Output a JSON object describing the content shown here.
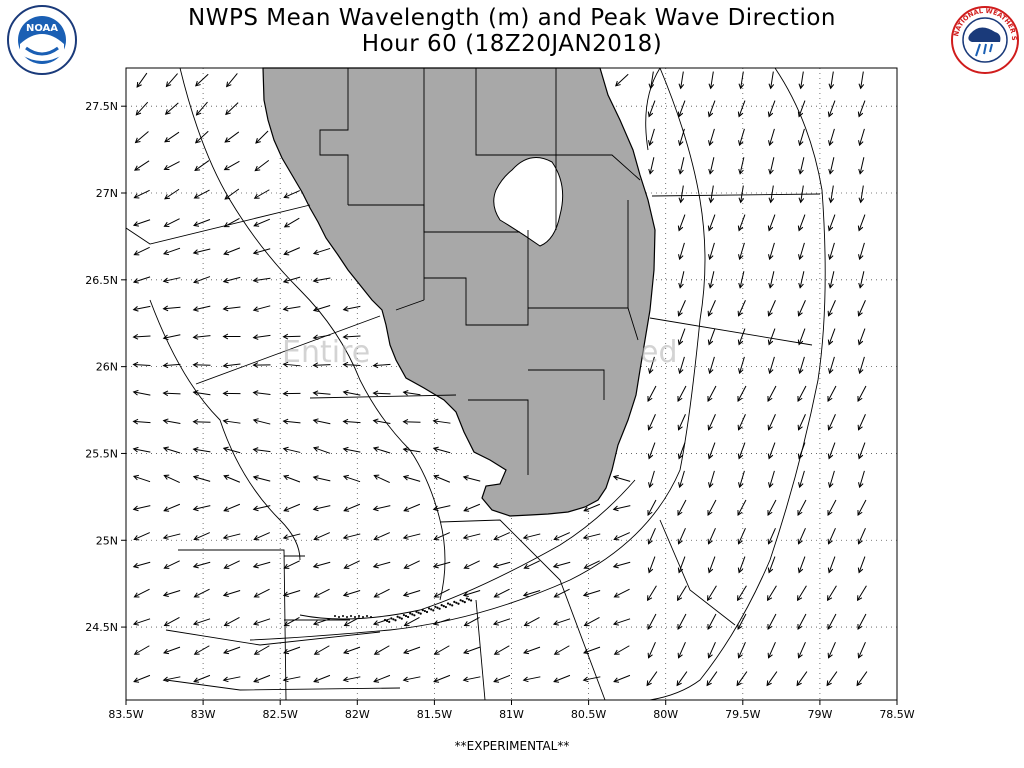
{
  "title_line1": "NWPS Mean Wavelength (m) and Peak Wave Direction",
  "title_line2": "Hour 60 (18Z20JAN2018)",
  "footer": "**EXPERIMENTAL**",
  "watermark_left": "Entire",
  "watermark_right": "ed",
  "logos": {
    "left": "noaa-logo",
    "right": "national-weather-service-logo"
  },
  "logo_text": {
    "noaa": "NOAA",
    "nws": "NATIONAL WEATHER SERVICE"
  },
  "colors": {
    "land": "#a8a8a8",
    "water": "#ffffff",
    "lake": "#ffffff",
    "lines": "#000000",
    "noaa_blue": "#1a5fb4",
    "nws_red": "#d01c1c"
  },
  "map": {
    "lon_range": [
      -83.5,
      -78.5
    ],
    "lat_range": [
      24.08,
      27.72
    ],
    "x_ticks": [
      "83.5W",
      "83W",
      "82.5W",
      "82W",
      "81.5W",
      "81W",
      "80.5W",
      "80W",
      "79.5W",
      "79W",
      "78.5W"
    ],
    "x_tick_values": [
      -83.5,
      -83,
      -82.5,
      -82,
      -81.5,
      -81,
      -80.5,
      -80,
      -79.5,
      -79,
      -78.5
    ],
    "y_ticks": [
      "27.5N",
      "27N",
      "26.5N",
      "26N",
      "25.5N",
      "25N",
      "24.5N"
    ],
    "y_tick_values": [
      27.5,
      27,
      26.5,
      26,
      25.5,
      25,
      24.5
    ],
    "grid": "dotted"
  }
}
